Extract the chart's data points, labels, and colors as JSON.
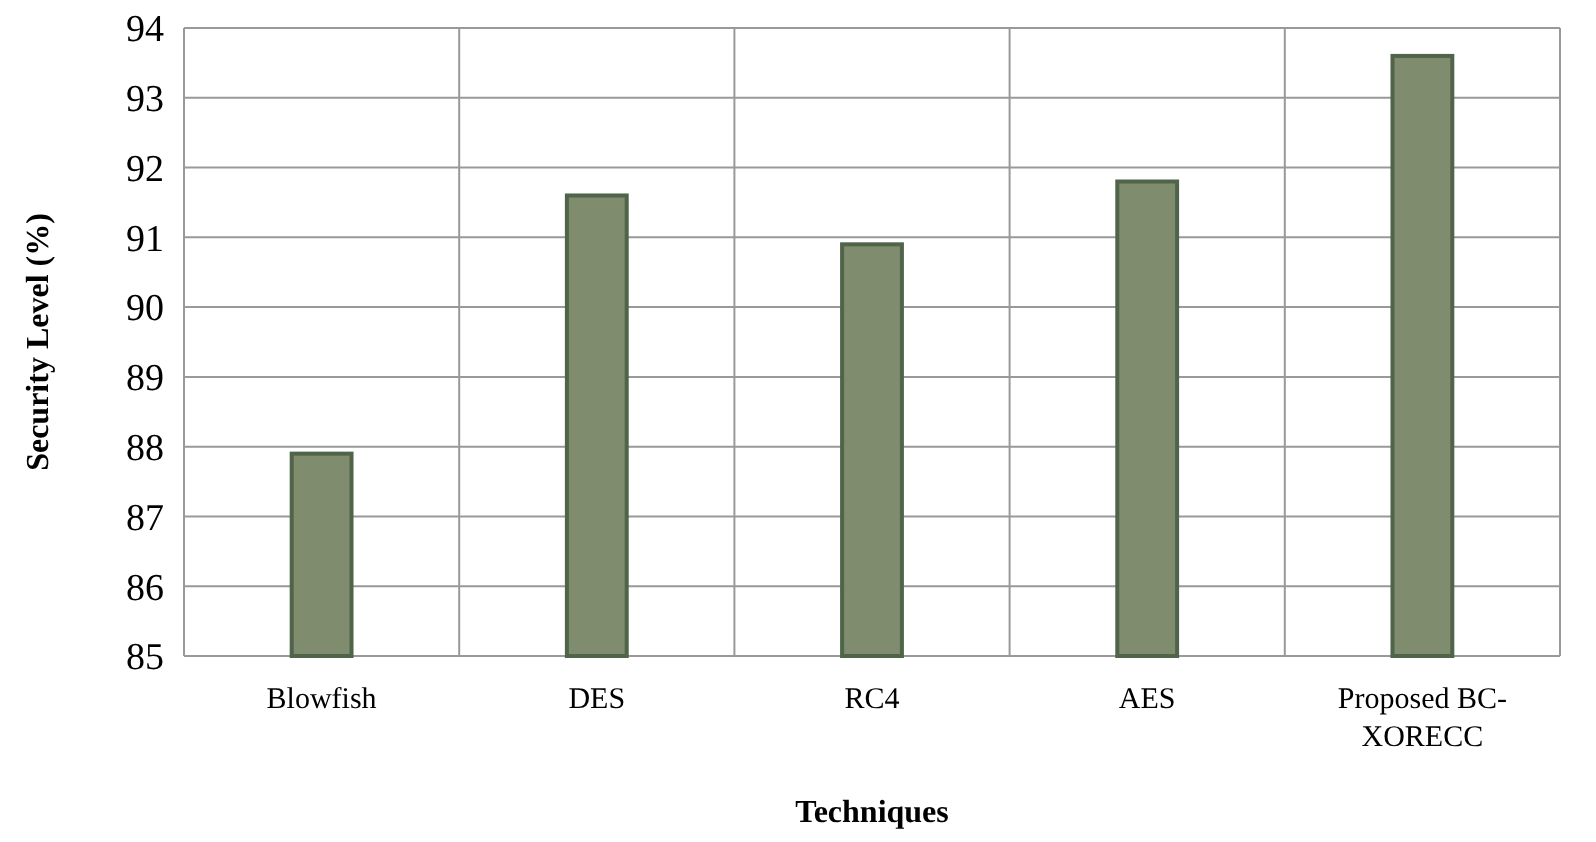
{
  "chart_data": {
    "type": "bar",
    "xlabel": "Techniques",
    "ylabel": "Security Level (%)",
    "categories": [
      "Blowfish",
      "DES",
      "RC4",
      "AES",
      "Proposed BC-XORECC"
    ],
    "values": [
      87.9,
      91.6,
      90.9,
      91.8,
      93.6
    ],
    "color": "#7f8c6e",
    "ylim": [
      85,
      94
    ],
    "yticks": [
      85,
      86,
      87,
      88,
      89,
      90,
      91,
      92,
      93,
      94
    ],
    "grid": true
  }
}
